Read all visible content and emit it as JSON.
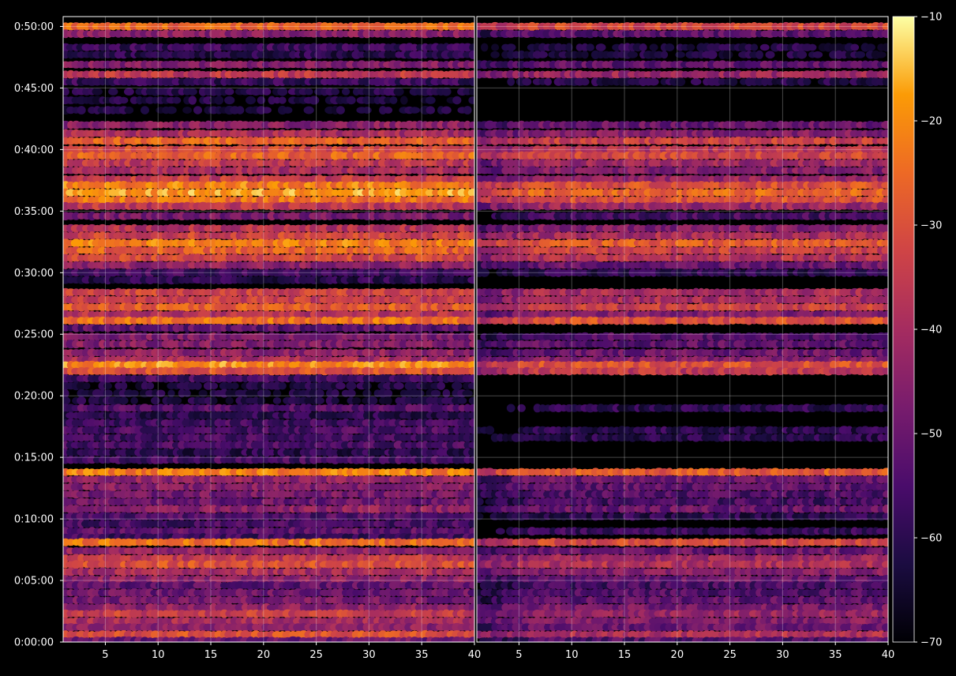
{
  "chart_data": {
    "type": "heatmap",
    "panels": [
      {
        "x_ticks": [
          5,
          10,
          15,
          20,
          25,
          30,
          35,
          40
        ],
        "xlim": [
          1,
          40
        ],
        "bands": [
          {
            "t": 50.0,
            "level": -26
          },
          {
            "t": 49.4,
            "level": -45
          },
          {
            "t": 48.3,
            "level": -58
          },
          {
            "t": 47.7,
            "level": -60
          },
          {
            "t": 46.9,
            "level": -46
          },
          {
            "t": 46.1,
            "level": -36
          },
          {
            "t": 45.5,
            "level": -58
          },
          {
            "t": 44.7,
            "level": -62
          },
          {
            "t": 44.0,
            "level": -63
          },
          {
            "t": 43.2,
            "level": -64
          },
          {
            "t": 42.0,
            "level": -45
          },
          {
            "t": 41.3,
            "level": -40
          },
          {
            "t": 40.7,
            "level": -27
          },
          {
            "t": 40.0,
            "level": -32
          },
          {
            "t": 39.5,
            "level": -26
          },
          {
            "t": 38.9,
            "level": -36
          },
          {
            "t": 38.3,
            "level": -40
          },
          {
            "t": 37.6,
            "level": -35
          },
          {
            "t": 37.1,
            "level": -22
          },
          {
            "t": 36.5,
            "level": -18
          },
          {
            "t": 35.9,
            "level": -24
          },
          {
            "t": 35.4,
            "level": -36
          },
          {
            "t": 34.6,
            "level": -48
          },
          {
            "t": 33.6,
            "level": -38
          },
          {
            "t": 33.0,
            "level": -33
          },
          {
            "t": 32.4,
            "level": -22
          },
          {
            "t": 31.8,
            "level": -27
          },
          {
            "t": 31.2,
            "level": -32
          },
          {
            "t": 30.6,
            "level": -44
          },
          {
            "t": 30.0,
            "level": -56
          },
          {
            "t": 29.4,
            "level": -60
          },
          {
            "t": 28.4,
            "level": -33
          },
          {
            "t": 27.8,
            "level": -34
          },
          {
            "t": 27.2,
            "level": -28
          },
          {
            "t": 26.6,
            "level": -38
          },
          {
            "t": 26.1,
            "level": -24
          },
          {
            "t": 25.5,
            "level": -52
          },
          {
            "t": 24.8,
            "level": -47
          },
          {
            "t": 24.2,
            "level": -46
          },
          {
            "t": 23.5,
            "level": -44
          },
          {
            "t": 22.9,
            "level": -40
          },
          {
            "t": 22.5,
            "level": -20
          },
          {
            "t": 22.0,
            "level": -30
          },
          {
            "t": 21.4,
            "level": -56
          },
          {
            "t": 20.8,
            "level": -63
          },
          {
            "t": 20.2,
            "level": -64
          },
          {
            "t": 19.6,
            "level": -63
          },
          {
            "t": 19.0,
            "level": -54
          },
          {
            "t": 18.4,
            "level": -60
          },
          {
            "t": 17.8,
            "level": -56
          },
          {
            "t": 17.2,
            "level": -55
          },
          {
            "t": 16.6,
            "level": -56
          },
          {
            "t": 16.0,
            "level": -55
          },
          {
            "t": 15.4,
            "level": -60
          },
          {
            "t": 14.8,
            "level": -56
          },
          {
            "t": 13.8,
            "level": -22
          },
          {
            "t": 13.2,
            "level": -44
          },
          {
            "t": 12.6,
            "level": -46
          },
          {
            "t": 12.0,
            "level": -48
          },
          {
            "t": 11.4,
            "level": -50
          },
          {
            "t": 10.8,
            "level": -44
          },
          {
            "t": 10.2,
            "level": -54
          },
          {
            "t": 9.6,
            "level": -56
          },
          {
            "t": 9.0,
            "level": -52
          },
          {
            "t": 8.5,
            "level": -57
          },
          {
            "t": 8.1,
            "level": -24
          },
          {
            "t": 7.4,
            "level": -44
          },
          {
            "t": 6.8,
            "level": -36
          },
          {
            "t": 6.3,
            "level": -30
          },
          {
            "t": 5.7,
            "level": -40
          },
          {
            "t": 5.1,
            "level": -44
          },
          {
            "t": 4.6,
            "level": -52
          },
          {
            "t": 4.0,
            "level": -50
          },
          {
            "t": 3.4,
            "level": -48
          },
          {
            "t": 2.8,
            "level": -44
          },
          {
            "t": 2.3,
            "level": -34
          },
          {
            "t": 1.7,
            "level": -40
          },
          {
            "t": 1.2,
            "level": -44
          },
          {
            "t": 0.6,
            "level": -30
          },
          {
            "t": 0.1,
            "level": -50
          }
        ]
      },
      {
        "x_ticks": [
          5,
          10,
          15,
          20,
          25,
          30,
          35,
          40
        ],
        "xlim": [
          1,
          40
        ],
        "bands": [
          {
            "t": 50.0,
            "level": -32
          },
          {
            "t": 49.4,
            "level": -52
          },
          {
            "t": 48.3,
            "level": -62
          },
          {
            "t": 47.7,
            "level": -63
          },
          {
            "t": 46.9,
            "level": -52
          },
          {
            "t": 46.1,
            "level": -42
          },
          {
            "t": 45.5,
            "level": -62
          },
          {
            "t": 42.0,
            "level": -50
          },
          {
            "t": 41.3,
            "level": -46
          },
          {
            "t": 40.7,
            "level": -34
          },
          {
            "t": 40.0,
            "level": -38
          },
          {
            "t": 39.5,
            "level": -32
          },
          {
            "t": 38.9,
            "level": -42
          },
          {
            "t": 38.3,
            "level": -46
          },
          {
            "t": 37.6,
            "level": -42
          },
          {
            "t": 37.1,
            "level": -30
          },
          {
            "t": 36.5,
            "level": -26
          },
          {
            "t": 35.9,
            "level": -30
          },
          {
            "t": 35.4,
            "level": -42
          },
          {
            "t": 34.6,
            "level": -56
          },
          {
            "t": 33.6,
            "level": -46
          },
          {
            "t": 33.0,
            "level": -40
          },
          {
            "t": 32.4,
            "level": -28
          },
          {
            "t": 31.8,
            "level": -34
          },
          {
            "t": 31.2,
            "level": -38
          },
          {
            "t": 30.6,
            "level": -50
          },
          {
            "t": 30.0,
            "level": -60
          },
          {
            "t": 28.4,
            "level": -40
          },
          {
            "t": 27.8,
            "level": -40
          },
          {
            "t": 27.2,
            "level": -34
          },
          {
            "t": 26.6,
            "level": -46
          },
          {
            "t": 26.1,
            "level": -30
          },
          {
            "t": 24.8,
            "level": -54
          },
          {
            "t": 24.2,
            "level": -52
          },
          {
            "t": 23.5,
            "level": -50
          },
          {
            "t": 22.9,
            "level": -46
          },
          {
            "t": 22.5,
            "level": -30
          },
          {
            "t": 22.0,
            "level": -36
          },
          {
            "t": 19.0,
            "level": -60
          },
          {
            "t": 17.2,
            "level": -60
          },
          {
            "t": 16.6,
            "level": -60
          },
          {
            "t": 13.8,
            "level": -28
          },
          {
            "t": 13.2,
            "level": -50
          },
          {
            "t": 12.6,
            "level": -52
          },
          {
            "t": 12.0,
            "level": -54
          },
          {
            "t": 11.4,
            "level": -56
          },
          {
            "t": 10.8,
            "level": -50
          },
          {
            "t": 10.2,
            "level": -60
          },
          {
            "t": 9.0,
            "level": -58
          },
          {
            "t": 8.1,
            "level": -32
          },
          {
            "t": 7.4,
            "level": -50
          },
          {
            "t": 6.8,
            "level": -42
          },
          {
            "t": 6.3,
            "level": -38
          },
          {
            "t": 5.7,
            "level": -46
          },
          {
            "t": 5.1,
            "level": -50
          },
          {
            "t": 4.6,
            "level": -56
          },
          {
            "t": 4.0,
            "level": -54
          },
          {
            "t": 3.4,
            "level": -52
          },
          {
            "t": 2.8,
            "level": -48
          },
          {
            "t": 2.3,
            "level": -42
          },
          {
            "t": 1.7,
            "level": -46
          },
          {
            "t": 1.2,
            "level": -50
          },
          {
            "t": 0.6,
            "level": -38
          },
          {
            "t": 0.1,
            "level": -54
          }
        ]
      }
    ],
    "y_tick_labels": [
      "0:00:00",
      "0:05:00",
      "0:10:00",
      "0:15:00",
      "0:20:00",
      "0:25:00",
      "0:30:00",
      "0:35:00",
      "0:40:00",
      "0:45:00",
      "0:50:00"
    ],
    "y_tick_minutes": [
      0,
      5,
      10,
      15,
      20,
      25,
      30,
      35,
      40,
      45,
      50
    ],
    "ylim_minutes": [
      0,
      50.8
    ],
    "colorbar": {
      "ticks": [
        -10,
        -20,
        -30,
        -40,
        -50,
        -60,
        -70
      ],
      "tick_labels": [
        "−10",
        "−20",
        "−30",
        "−40",
        "−50",
        "−60",
        "−70"
      ],
      "range": [
        -70,
        -10
      ],
      "colormap": "inferno"
    },
    "grid": true,
    "background": "#000000"
  }
}
